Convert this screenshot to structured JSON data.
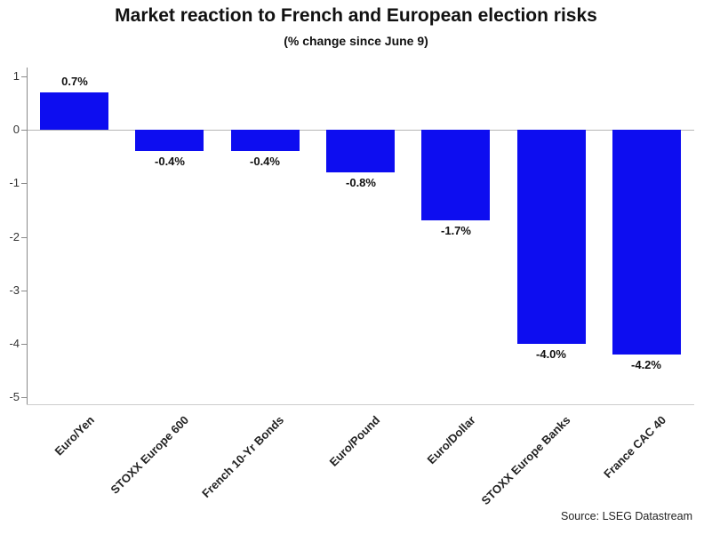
{
  "source": "Source: LSEG Datastream",
  "chart_data": {
    "type": "bar",
    "title": "Market reaction to French and European election risks",
    "subtitle": "(% change since June 9)",
    "categories": [
      "Euro/Yen",
      "STOXX Europe 600",
      "French 10-Yr Bonds",
      "Euro/Pound",
      "Euro/Dollar",
      "STOXX Europe Banks",
      "France CAC 40"
    ],
    "values": [
      0.7,
      -0.4,
      -0.4,
      -0.8,
      -1.7,
      -4.0,
      -4.2
    ],
    "value_labels": [
      "0.7%",
      "-0.4%",
      "-0.4%",
      "-0.8%",
      "-1.7%",
      "-4.0%",
      "-4.2%"
    ],
    "ylim": [
      -5,
      1
    ],
    "yticks": [
      1,
      0,
      -1,
      -2,
      -3,
      -4,
      -5
    ],
    "bar_color": "#0d0df0",
    "grid": false,
    "legend": false,
    "xlabel": "",
    "ylabel": ""
  }
}
